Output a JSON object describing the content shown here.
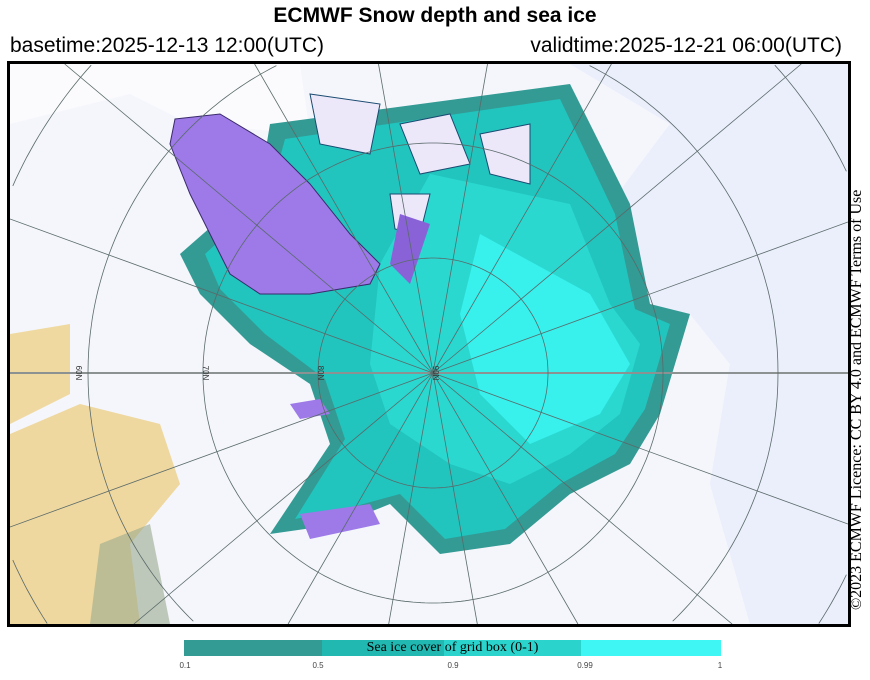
{
  "header": {
    "title": "ECMWF Snow depth and sea ice",
    "basetime": "basetime:2025-12-13 12:00(UTC)",
    "validtime": "validtime:2025-12-21 06:00(UTC)"
  },
  "licence": "©2023 ECMWF Licence: CC BY 4.0 and ECMWF Terms of Use",
  "map": {
    "latitude_labels": [
      "60N",
      "70N",
      "80N",
      "90N"
    ],
    "colors": {
      "ice_low": "#339a94",
      "ice_mid": "#22c4be",
      "ice_high": "#23e0d8",
      "ice_full": "#38f4f2",
      "greenland": "#9d7ae8",
      "land_bare": "#f0d9a0",
      "snow_light": "#e8ecfa"
    }
  },
  "legend": {
    "title": "Sea ice cover of grid box (0-1)",
    "ticks": [
      "0.1",
      "0.5",
      "0.9",
      "0.99",
      "1"
    ],
    "colors": [
      "#339a94",
      "#22b8b2",
      "#2ad4cc",
      "#40f6f4"
    ]
  }
}
